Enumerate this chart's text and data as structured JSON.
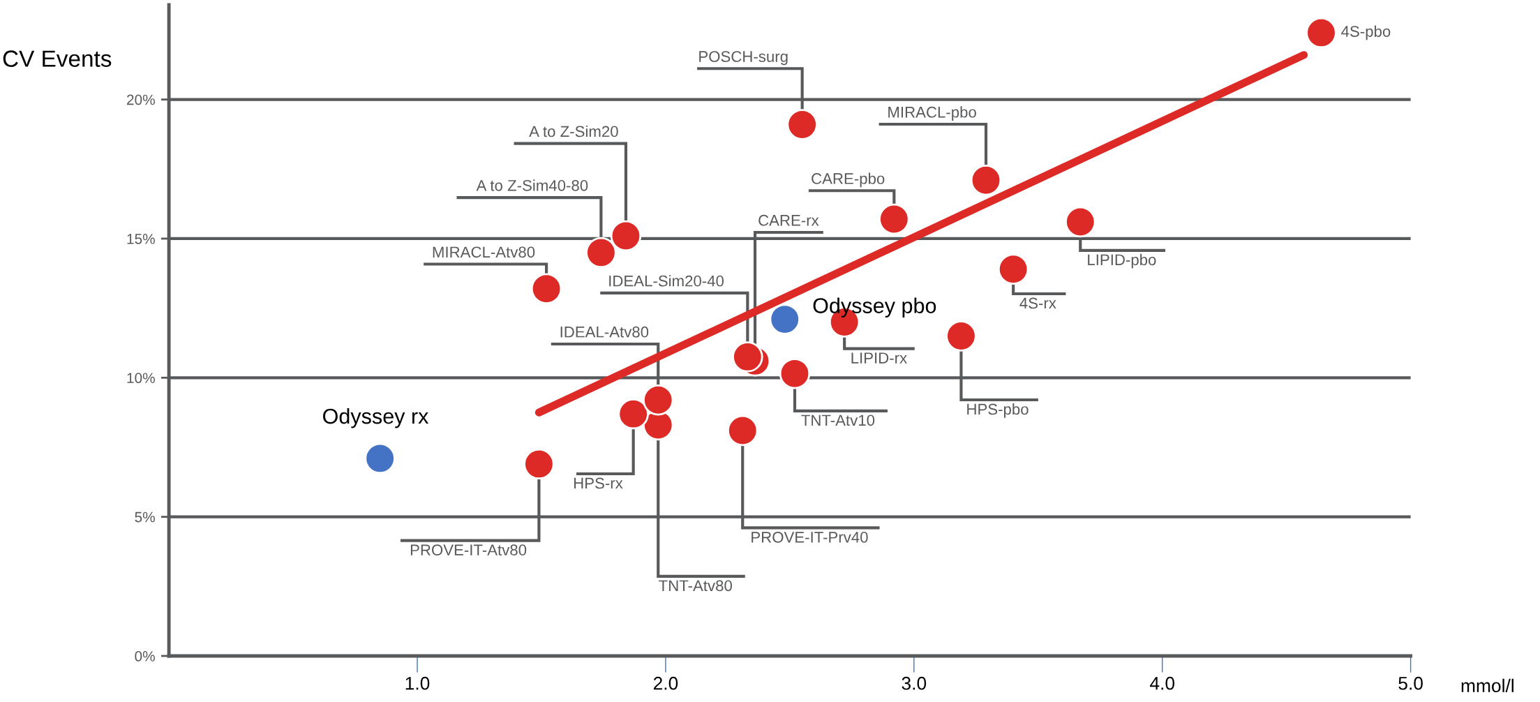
{
  "chart_data": {
    "type": "scatter",
    "ylabel": "CV Events",
    "xlabel": "mmol/l",
    "xlim": [
      0,
      5.0
    ],
    "xticks": [
      {
        "value": 1,
        "label": "1.0"
      },
      {
        "value": 2,
        "label": "2.0"
      },
      {
        "value": 3,
        "label": "3.0"
      },
      {
        "value": 4,
        "label": "4.0"
      },
      {
        "value": 5,
        "label": "5.0"
      }
    ],
    "ylim": [
      0,
      23.4
    ],
    "yticks": [
      {
        "value": 0,
        "label": "0%"
      },
      {
        "value": 5,
        "label": "5%"
      },
      {
        "value": 10,
        "label": "10%"
      },
      {
        "value": 15,
        "label": "15%"
      },
      {
        "value": 20,
        "label": "20%"
      }
    ],
    "grid": "y",
    "legend": false,
    "series": [
      {
        "marker": "circle",
        "color": "#dd2a26",
        "x": [
          4.64,
          2.55,
          3.29,
          1.84,
          1.74,
          1.52,
          2.92,
          3.67,
          3.4,
          2.72,
          3.19,
          2.33,
          2.36,
          2.52,
          1.97,
          1.87,
          1.97,
          2.31,
          1.49
        ],
        "values": [
          22.4,
          19.1,
          17.1,
          15.1,
          14.5,
          13.2,
          15.7,
          15.6,
          13.9,
          12.0,
          11.5,
          10.75,
          10.6,
          10.15,
          9.2,
          8.7,
          8.3,
          8.1,
          6.9
        ]
      },
      {
        "marker": "circle",
        "color": "#4472c4",
        "x": [
          2.48,
          0.85
        ],
        "values": [
          12.1,
          7.1
        ]
      },
      {
        "type": "line",
        "color": "#dd2a26",
        "x": [
          1.49,
          4.57
        ],
        "values": [
          8.75,
          21.6
        ]
      }
    ],
    "annotations": [
      {
        "text": "4S-pbo",
        "x": 4.64,
        "y": 22.4
      },
      {
        "text": "POSCH-surg",
        "x": 2.55,
        "y": 19.1
      },
      {
        "text": "MIRACL-pbo",
        "x": 3.29,
        "y": 17.1
      },
      {
        "text": "A to Z-Sim20",
        "x": 1.84,
        "y": 15.1
      },
      {
        "text": "A to Z-Sim40-80",
        "x": 1.74,
        "y": 14.5
      },
      {
        "text": "MIRACL-Atv80",
        "x": 1.52,
        "y": 13.2
      },
      {
        "text": "CARE-pbo",
        "x": 2.92,
        "y": 15.7
      },
      {
        "text": "LIPID-pbo",
        "x": 3.67,
        "y": 15.6
      },
      {
        "text": "4S-rx",
        "x": 3.4,
        "y": 13.9
      },
      {
        "text": "Odyssey pbo",
        "x": 2.48,
        "y": 12.1
      },
      {
        "text": "LIPID-rx",
        "x": 2.72,
        "y": 12.0
      },
      {
        "text": "HPS-pbo",
        "x": 3.19,
        "y": 11.5
      },
      {
        "text": "IDEAL-Sim20-40",
        "x": 2.33,
        "y": 10.75
      },
      {
        "text": "CARE-rx",
        "x": 2.36,
        "y": 10.6
      },
      {
        "text": "TNT-Atv10",
        "x": 2.52,
        "y": 10.15
      },
      {
        "text": "IDEAL-Atv80",
        "x": 1.97,
        "y": 9.2
      },
      {
        "text": "HPS-rx",
        "x": 1.87,
        "y": 8.7
      },
      {
        "text": "TNT-Atv80",
        "x": 1.97,
        "y": 8.3
      },
      {
        "text": "PROVE-IT-Prv40",
        "x": 2.31,
        "y": 8.1
      },
      {
        "text": "PROVE-IT-Atv80",
        "x": 1.49,
        "y": 6.9
      },
      {
        "text": "Odyssey rx",
        "x": 0.85,
        "y": 7.1
      }
    ]
  }
}
